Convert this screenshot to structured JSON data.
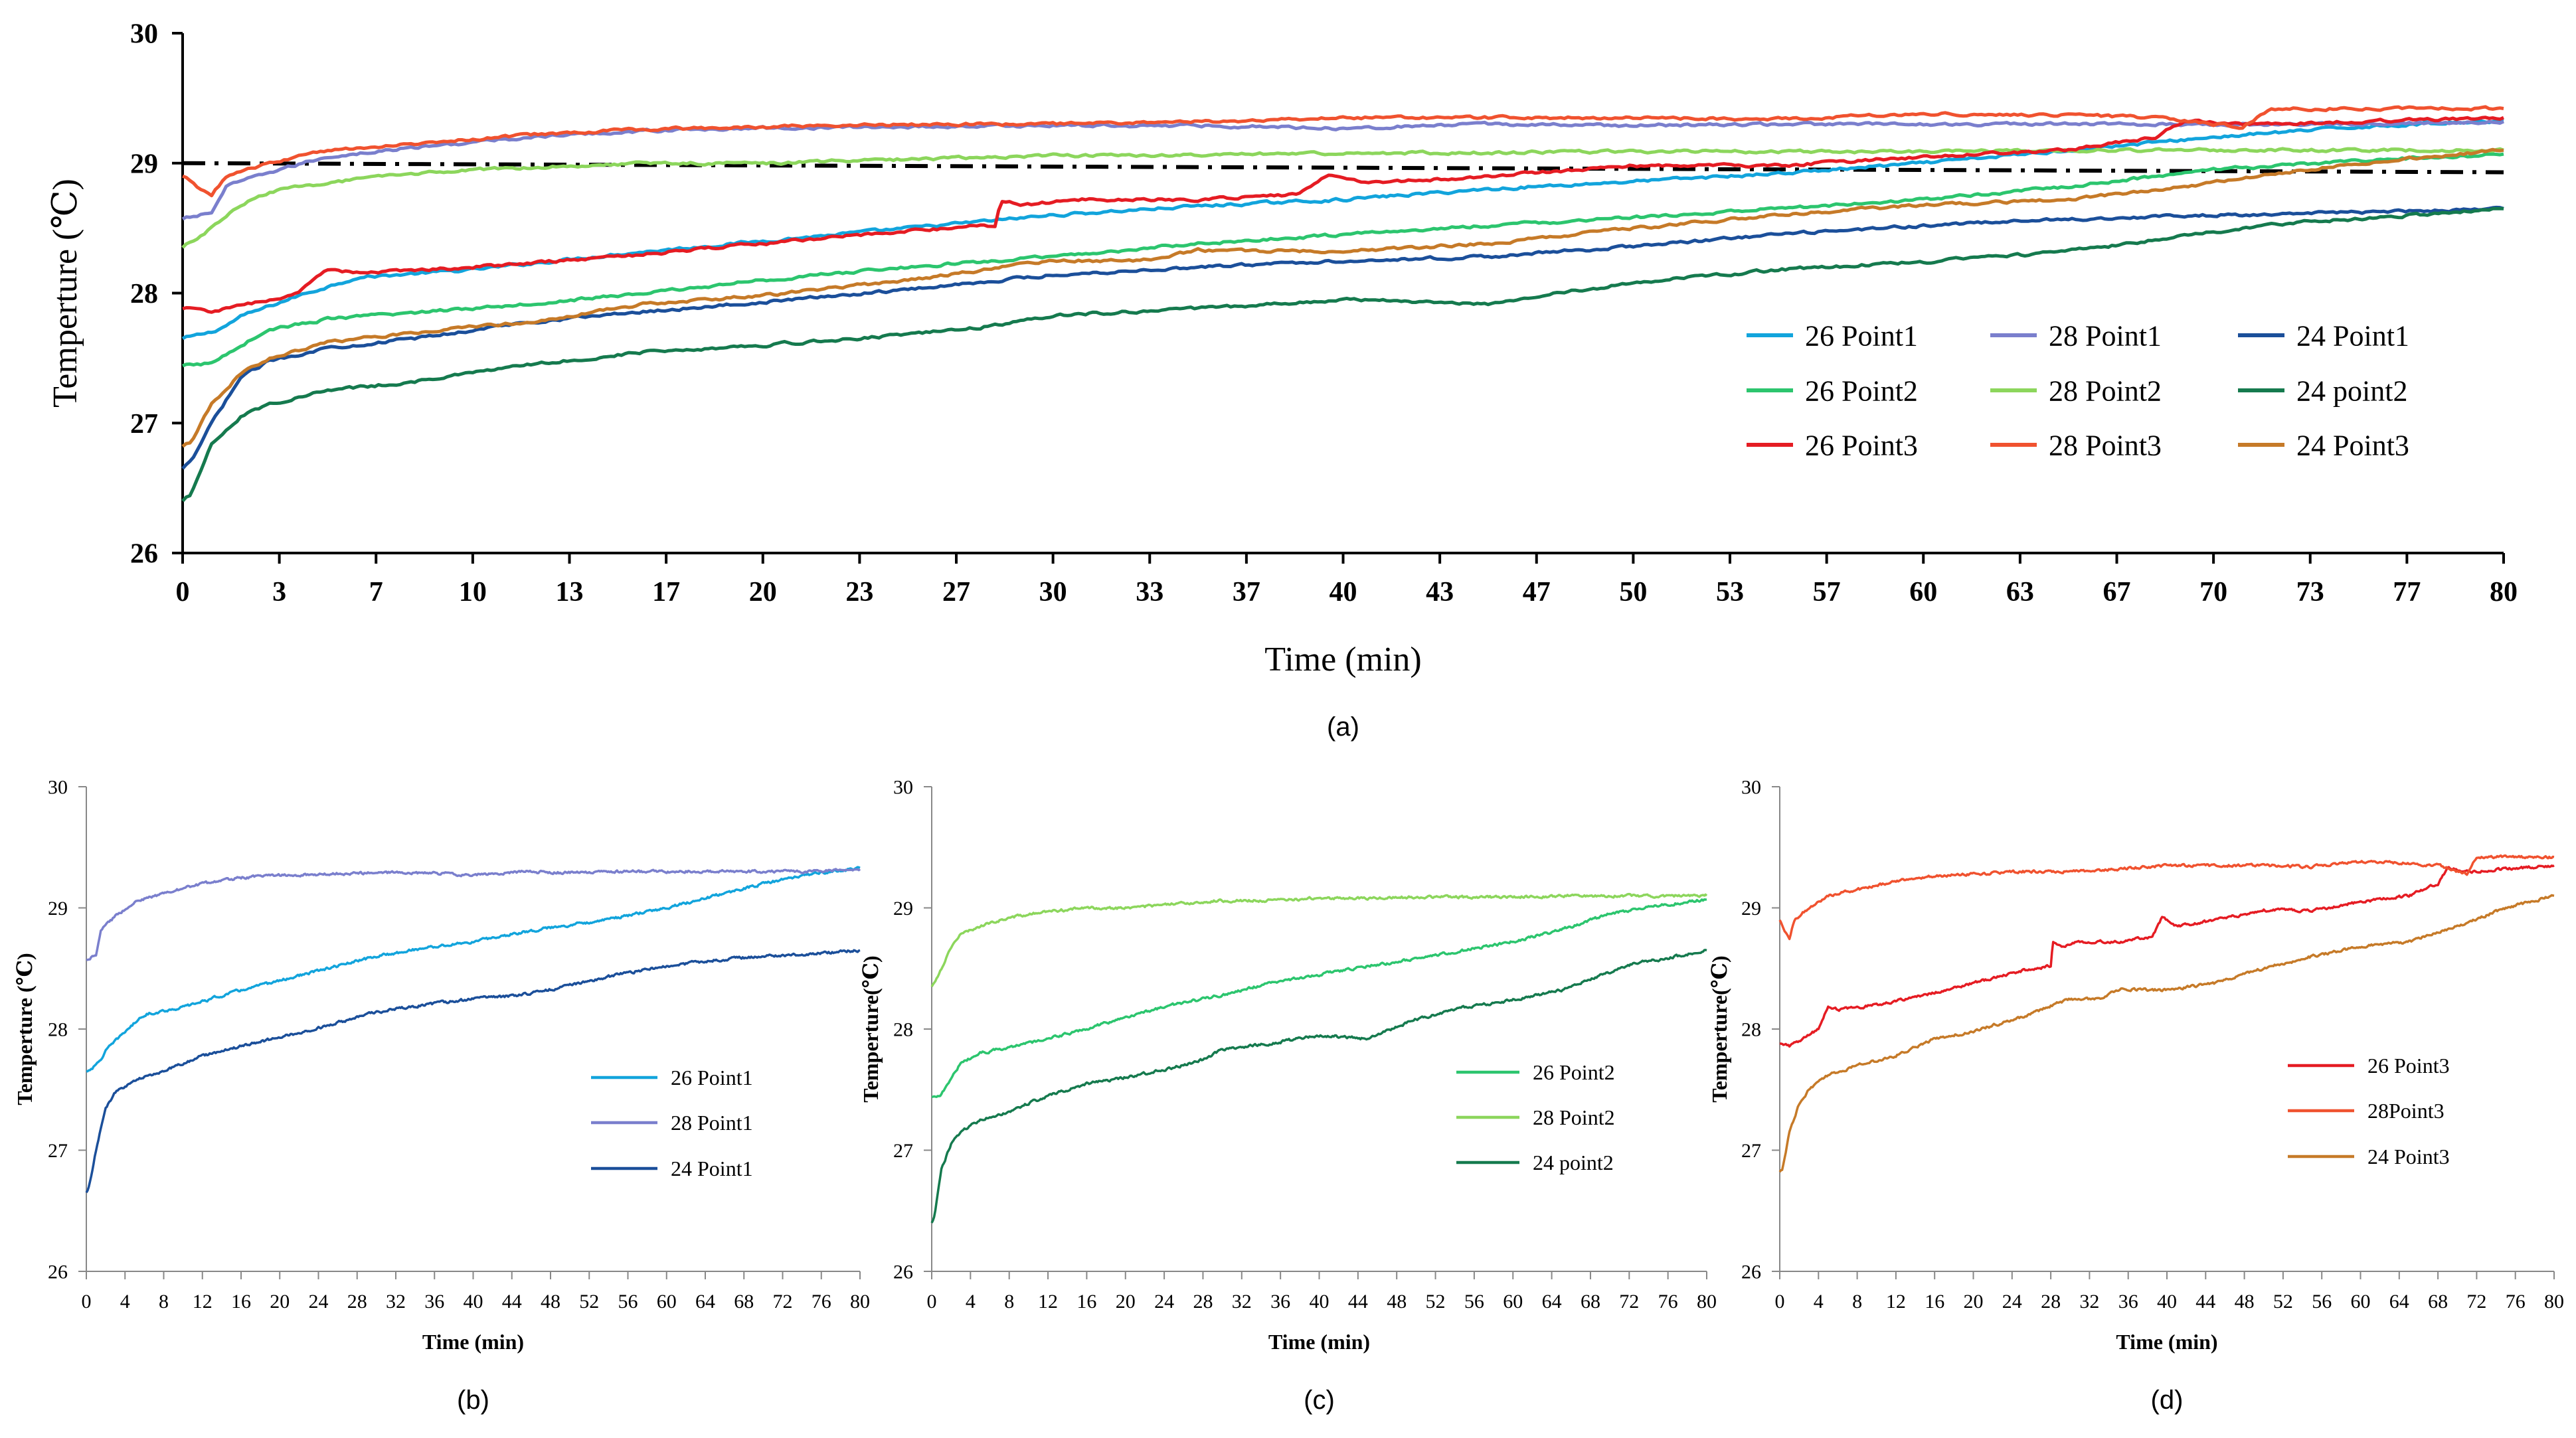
{
  "chart_data": [
    {
      "id": "a",
      "type": "line",
      "caption": "(a)",
      "xlabel": "Time (min)",
      "ylabel": "Temperture (℃)",
      "xlim": [
        0,
        80
      ],
      "ylim": [
        26,
        30
      ],
      "xticks": [
        "0",
        "3",
        "7",
        "10",
        "13",
        "17",
        "20",
        "23",
        "27",
        "30",
        "33",
        "37",
        "40",
        "43",
        "47",
        "50",
        "53",
        "57",
        "60",
        "63",
        "67",
        "70",
        "73",
        "77",
        "80"
      ],
      "yticks": [
        "26",
        "27",
        "28",
        "29",
        "30"
      ],
      "legend_position": "bottom-right",
      "reference_line": {
        "style": "dash-dot",
        "color": "#000000",
        "points": [
          [
            0,
            29.0
          ],
          [
            80,
            28.93
          ]
        ]
      },
      "series": [
        {
          "name": "26 Point1",
          "color": "#12A4DC",
          "points": [
            [
              0,
              27.65
            ],
            [
              1,
              27.7
            ],
            [
              1.5,
              27.75
            ],
            [
              2,
              27.82
            ],
            [
              4,
              27.98
            ],
            [
              6,
              28.12
            ],
            [
              10,
              28.18
            ],
            [
              15,
              28.3
            ],
            [
              20,
              28.4
            ],
            [
              25,
              28.5
            ],
            [
              30,
              28.6
            ],
            [
              35,
              28.67
            ],
            [
              40,
              28.72
            ],
            [
              45,
              28.8
            ],
            [
              50,
              28.86
            ],
            [
              55,
              28.92
            ],
            [
              60,
              29.0
            ],
            [
              65,
              29.1
            ],
            [
              70,
              29.2
            ],
            [
              75,
              29.28
            ],
            [
              80,
              29.33
            ]
          ]
        },
        {
          "name": "28 Point1",
          "color": "#7A7FCD",
          "points": [
            [
              0,
              28.57
            ],
            [
              1,
              28.62
            ],
            [
              1.5,
              28.82
            ],
            [
              3,
              28.93
            ],
            [
              5,
              29.05
            ],
            [
              8,
              29.12
            ],
            [
              12,
              29.2
            ],
            [
              16,
              29.25
            ],
            [
              20,
              29.27
            ],
            [
              25,
              29.28
            ],
            [
              30,
              29.29
            ],
            [
              35,
              29.29
            ],
            [
              40,
              29.27
            ],
            [
              45,
              29.3
            ],
            [
              50,
              29.29
            ],
            [
              55,
              29.3
            ],
            [
              60,
              29.3
            ],
            [
              65,
              29.3
            ],
            [
              70,
              29.3
            ],
            [
              75,
              29.3
            ],
            [
              80,
              29.32
            ]
          ]
        },
        {
          "name": "24 Point1",
          "color": "#1B4F9A",
          "points": [
            [
              0,
              26.65
            ],
            [
              0.3,
              26.7
            ],
            [
              1,
              27.0
            ],
            [
              2,
              27.35
            ],
            [
              3,
              27.48
            ],
            [
              5,
              27.58
            ],
            [
              8,
              27.65
            ],
            [
              12,
              27.78
            ],
            [
              16,
              27.86
            ],
            [
              20,
              27.93
            ],
            [
              25,
              28.03
            ],
            [
              30,
              28.14
            ],
            [
              35,
              28.2
            ],
            [
              40,
              28.25
            ],
            [
              45,
              28.28
            ],
            [
              50,
              28.36
            ],
            [
              55,
              28.45
            ],
            [
              60,
              28.52
            ],
            [
              65,
              28.57
            ],
            [
              70,
              28.6
            ],
            [
              75,
              28.62
            ],
            [
              80,
              28.65
            ]
          ]
        },
        {
          "name": "26 Point2",
          "color": "#2CC56E",
          "points": [
            [
              0,
              27.44
            ],
            [
              1,
              27.46
            ],
            [
              2,
              27.6
            ],
            [
              3,
              27.72
            ],
            [
              5,
              27.8
            ],
            [
              8,
              27.85
            ],
            [
              12,
              27.92
            ],
            [
              16,
              28.0
            ],
            [
              20,
              28.1
            ],
            [
              25,
              28.2
            ],
            [
              30,
              28.28
            ],
            [
              35,
              28.38
            ],
            [
              40,
              28.45
            ],
            [
              45,
              28.52
            ],
            [
              50,
              28.58
            ],
            [
              55,
              28.65
            ],
            [
              60,
              28.72
            ],
            [
              65,
              28.82
            ],
            [
              70,
              28.95
            ],
            [
              75,
              29.02
            ],
            [
              80,
              29.07
            ]
          ]
        },
        {
          "name": "28 Point2",
          "color": "#8CD65C",
          "points": [
            [
              0,
              28.35
            ],
            [
              1,
              28.5
            ],
            [
              2,
              28.68
            ],
            [
              3,
              28.78
            ],
            [
              5,
              28.85
            ],
            [
              8,
              28.92
            ],
            [
              12,
              28.97
            ],
            [
              16,
              29.0
            ],
            [
              20,
              29.0
            ],
            [
              25,
              29.03
            ],
            [
              30,
              29.06
            ],
            [
              35,
              29.06
            ],
            [
              40,
              29.08
            ],
            [
              45,
              29.08
            ],
            [
              50,
              29.09
            ],
            [
              55,
              29.09
            ],
            [
              60,
              29.09
            ],
            [
              65,
              29.1
            ],
            [
              70,
              29.1
            ],
            [
              75,
              29.1
            ],
            [
              80,
              29.1
            ]
          ]
        },
        {
          "name": "24 point2",
          "color": "#157A4E",
          "points": [
            [
              0,
              26.4
            ],
            [
              0.3,
              26.45
            ],
            [
              1,
              26.85
            ],
            [
              2,
              27.05
            ],
            [
              3,
              27.15
            ],
            [
              5,
              27.25
            ],
            [
              8,
              27.32
            ],
            [
              12,
              27.45
            ],
            [
              16,
              27.55
            ],
            [
              20,
              27.6
            ],
            [
              25,
              27.68
            ],
            [
              28,
              27.75
            ],
            [
              30,
              27.83
            ],
            [
              35,
              27.88
            ],
            [
              40,
              27.95
            ],
            [
              45,
              27.92
            ],
            [
              50,
              28.08
            ],
            [
              55,
              28.18
            ],
            [
              60,
              28.24
            ],
            [
              65,
              28.32
            ],
            [
              70,
              28.47
            ],
            [
              73,
              28.55
            ],
            [
              75,
              28.57
            ],
            [
              80,
              28.65
            ]
          ]
        },
        {
          "name": "26 Point3",
          "color": "#E51C23",
          "points": [
            [
              0,
              27.88
            ],
            [
              1,
              27.86
            ],
            [
              2,
              27.9
            ],
            [
              4,
              28.0
            ],
            [
              5,
              28.18
            ],
            [
              6,
              28.16
            ],
            [
              10,
              28.2
            ],
            [
              15,
              28.28
            ],
            [
              20,
              28.38
            ],
            [
              25,
              28.48
            ],
            [
              28,
              28.52
            ],
            [
              28.2,
              28.72
            ],
            [
              29,
              28.68
            ],
            [
              31,
              28.72
            ],
            [
              35,
              28.72
            ],
            [
              38.5,
              28.76
            ],
            [
              39.5,
              28.92
            ],
            [
              41,
              28.85
            ],
            [
              45,
              28.9
            ],
            [
              50,
              28.98
            ],
            [
              55,
              28.98
            ],
            [
              60,
              29.05
            ],
            [
              65,
              29.1
            ],
            [
              68,
              29.2
            ],
            [
              69,
              29.33
            ],
            [
              71,
              29.3
            ],
            [
              75,
              29.32
            ],
            [
              80,
              29.35
            ]
          ]
        },
        {
          "name": "28 Point3",
          "color": "#F0522F",
          "points": [
            [
              0,
              28.9
            ],
            [
              0.5,
              28.82
            ],
            [
              1,
              28.75
            ],
            [
              1.5,
              28.9
            ],
            [
              3,
              29.0
            ],
            [
              5,
              29.1
            ],
            [
              8,
              29.15
            ],
            [
              12,
              29.22
            ],
            [
              16,
              29.26
            ],
            [
              20,
              29.28
            ],
            [
              25,
              29.3
            ],
            [
              30,
              29.3
            ],
            [
              35,
              29.32
            ],
            [
              40,
              29.35
            ],
            [
              45,
              29.35
            ],
            [
              50,
              29.35
            ],
            [
              55,
              29.34
            ],
            [
              60,
              29.38
            ],
            [
              65,
              29.37
            ],
            [
              68,
              29.35
            ],
            [
              70,
              29.3
            ],
            [
              71,
              29.28
            ],
            [
              72,
              29.42
            ],
            [
              80,
              29.42
            ]
          ]
        },
        {
          "name": "24 Point3",
          "color": "#C67A28",
          "points": [
            [
              0,
              26.82
            ],
            [
              0.3,
              26.85
            ],
            [
              1,
              27.15
            ],
            [
              2,
              27.38
            ],
            [
              3,
              27.5
            ],
            [
              5,
              27.62
            ],
            [
              8,
              27.7
            ],
            [
              12,
              27.78
            ],
            [
              16,
              27.92
            ],
            [
              20,
              27.98
            ],
            [
              25,
              28.1
            ],
            [
              30,
              28.25
            ],
            [
              33,
              28.25
            ],
            [
              35,
              28.33
            ],
            [
              40,
              28.32
            ],
            [
              45,
              28.38
            ],
            [
              50,
              28.5
            ],
            [
              55,
              28.6
            ],
            [
              60,
              28.68
            ],
            [
              65,
              28.72
            ],
            [
              70,
              28.85
            ],
            [
              75,
              29.0
            ],
            [
              80,
              29.1
            ]
          ]
        }
      ]
    },
    {
      "id": "b",
      "type": "line",
      "caption": "(b)",
      "xlabel": "Time (min)",
      "ylabel": "Temperture (℃)",
      "xlim": [
        0,
        80
      ],
      "ylim": [
        26,
        30
      ],
      "xticks": [
        "0",
        "4",
        "8",
        "12",
        "16",
        "20",
        "24",
        "28",
        "32",
        "36",
        "40",
        "44",
        "48",
        "52",
        "56",
        "60",
        "64",
        "68",
        "72",
        "76",
        "80"
      ],
      "yticks": [
        "26",
        "27",
        "28",
        "29",
        "30"
      ],
      "legend_position": "bottom-right",
      "series_refs": [
        0,
        1,
        2
      ]
    },
    {
      "id": "c",
      "type": "line",
      "caption": "(c)",
      "xlabel": "Time (min)",
      "ylabel": "Temperture(℃)",
      "xlim": [
        0,
        80
      ],
      "ylim": [
        26,
        30
      ],
      "xticks": [
        "0",
        "4",
        "8",
        "12",
        "16",
        "20",
        "24",
        "28",
        "32",
        "36",
        "40",
        "44",
        "48",
        "52",
        "56",
        "60",
        "64",
        "68",
        "72",
        "76",
        "80"
      ],
      "yticks": [
        "26",
        "27",
        "28",
        "29",
        "30"
      ],
      "legend_position": "bottom-right",
      "series_refs": [
        3,
        4,
        5
      ]
    },
    {
      "id": "d",
      "type": "line",
      "caption": "(d)",
      "xlabel": "Time (min)",
      "ylabel": "Temperture(℃)",
      "xlim": [
        0,
        80
      ],
      "ylim": [
        26,
        30
      ],
      "xticks": [
        "0",
        "4",
        "8",
        "12",
        "16",
        "20",
        "24",
        "28",
        "32",
        "36",
        "40",
        "44",
        "48",
        "52",
        "56",
        "60",
        "64",
        "68",
        "72",
        "76",
        "80"
      ],
      "yticks": [
        "26",
        "27",
        "28",
        "29",
        "30"
      ],
      "legend_position": "bottom-right",
      "series_refs": [
        6,
        7,
        8
      ],
      "legend_labels": [
        "26 Point3",
        "28Point3",
        "24 Point3"
      ]
    }
  ]
}
